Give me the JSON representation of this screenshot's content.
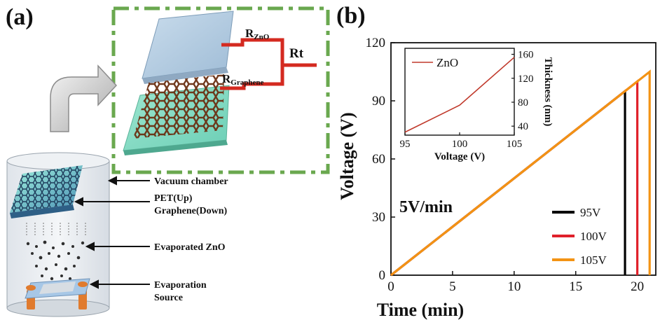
{
  "panel_a": {
    "label": "(a)",
    "circuit": {
      "r_zno_main": "R",
      "r_zno_sub": "ZnO",
      "r_graphene_main": "R",
      "r_graphene_sub": "Graphene",
      "rt": "Rt"
    },
    "callouts": {
      "vacuum_chamber": "Vacuum chamber",
      "pet_up": "PET(Up)",
      "graphene_down": "Graphene(Down)",
      "evaporated_zno": "Evaporated ZnO",
      "evaporation": "Evaporation",
      "source": "Source"
    }
  },
  "panel_b": {
    "label": "(b)",
    "rate_annotation": "5V/min"
  },
  "chart_data": [
    {
      "type": "line",
      "xlabel": "Time (min)",
      "ylabel": "Voltage (V)",
      "xlim": [
        0,
        21.5
      ],
      "ylim": [
        0,
        120
      ],
      "xticks": [
        0,
        5,
        10,
        15,
        20
      ],
      "yticks": [
        0,
        30,
        60,
        90,
        120
      ],
      "grid": false,
      "legend_position": "bottom-right",
      "series": [
        {
          "name": "95V",
          "color": "#000000",
          "x": [
            0,
            19.0,
            19.0
          ],
          "y": [
            0,
            95,
            0
          ]
        },
        {
          "name": "100V",
          "color": "#e0202a",
          "x": [
            0,
            20.0,
            20.0
          ],
          "y": [
            0,
            100,
            0
          ]
        },
        {
          "name": "105V",
          "color": "#f39314",
          "x": [
            0,
            21.0,
            21.0
          ],
          "y": [
            0,
            105,
            0
          ]
        }
      ]
    },
    {
      "type": "line",
      "xlabel": "Voltage (V)",
      "ylabel": "Thickness (nm)",
      "xlim": [
        95,
        105
      ],
      "ylim": [
        25,
        170
      ],
      "xticks": [
        95,
        100,
        105
      ],
      "yticks": [
        40,
        80,
        120,
        160
      ],
      "legend_position": "top-left",
      "series": [
        {
          "name": "ZnO",
          "color": "#c0392b",
          "x": [
            95,
            100,
            105
          ],
          "y": [
            30,
            75,
            155
          ]
        }
      ]
    }
  ]
}
